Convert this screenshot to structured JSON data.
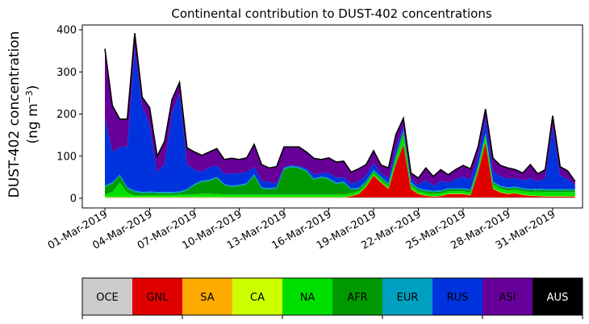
{
  "chart_data": {
    "type": "area",
    "title": "Continental contribution to DUST-402 concentrations",
    "ylabel_line1": "DUST-402 concentration",
    "ylabel_line2": "(ng m",
    "ylabel_unit_exp": "−3",
    "ylabel_close": ")",
    "xlabel": "",
    "ylim": [
      0,
      410
    ],
    "yticks": [
      0,
      100,
      200,
      300,
      400
    ],
    "xtick_days": [
      1,
      4,
      7,
      10,
      13,
      16,
      19,
      22,
      25,
      28,
      31
    ],
    "xtick_labels": [
      "01-Mar-2019",
      "04-Mar-2019",
      "07-Mar-2019",
      "10-Mar-2019",
      "13-Mar-2019",
      "16-Mar-2019",
      "19-Mar-2019",
      "22-Mar-2019",
      "25-Mar-2019",
      "28-Mar-2019",
      "31-Mar-2019"
    ],
    "x_start_day": 1,
    "x_end_day": 32.5,
    "x_step_days": 0.5,
    "total": [
      355,
      220,
      188,
      188,
      392,
      240,
      215,
      100,
      135,
      235,
      275,
      120,
      110,
      102,
      110,
      118,
      92,
      95,
      92,
      96,
      128,
      80,
      72,
      75,
      122,
      122,
      122,
      110,
      95,
      92,
      96,
      86,
      88,
      62,
      70,
      80,
      113,
      79,
      72,
      152,
      190,
      60,
      48,
      72,
      52,
      68,
      56,
      68,
      78,
      70,
      122,
      212,
      95,
      78,
      72,
      68,
      60,
      80,
      58,
      68,
      196,
      75,
      65,
      40
    ],
    "series": [
      {
        "name": "OCE",
        "color": "#cbcbcb",
        "values": [
          2,
          2,
          2,
          2,
          2,
          2,
          2,
          2,
          2,
          2,
          2,
          2,
          2,
          2,
          2,
          2,
          2,
          2,
          2,
          2,
          2,
          2,
          2,
          2,
          2,
          2,
          2,
          2,
          2,
          2,
          2,
          2,
          2,
          2,
          2,
          2,
          2,
          2,
          2,
          2,
          2,
          2,
          2,
          2,
          2,
          2,
          2,
          2,
          2,
          2,
          2,
          2,
          2,
          2,
          2,
          2,
          2,
          2,
          2,
          2,
          2,
          2,
          2,
          2
        ]
      },
      {
        "name": "GNL",
        "color": "#e00000",
        "values": [
          0,
          0,
          0,
          0,
          0,
          0,
          0,
          0,
          0,
          0,
          0,
          0,
          0,
          0,
          0,
          0,
          0,
          0,
          0,
          0,
          0,
          0,
          0,
          0,
          0,
          0,
          0,
          0,
          0,
          0,
          0,
          0,
          0,
          3,
          8,
          25,
          52,
          35,
          20,
          80,
          125,
          20,
          8,
          4,
          2,
          3,
          8,
          8,
          8,
          5,
          60,
          130,
          20,
          12,
          8,
          10,
          6,
          4,
          3,
          2,
          2,
          2,
          2,
          2
        ]
      },
      {
        "name": "SA",
        "color": "#ffaa00",
        "values": [
          0,
          0,
          0,
          0,
          0,
          0,
          0,
          0,
          0,
          0,
          0,
          0,
          0,
          0,
          0,
          0,
          0,
          0,
          0,
          0,
          0,
          0,
          0,
          0,
          0,
          0,
          0,
          0,
          0,
          0,
          0,
          0,
          0,
          0,
          0,
          0,
          0,
          0,
          0,
          0,
          0,
          0,
          0,
          0,
          0,
          0,
          0,
          0,
          0,
          0,
          0,
          0,
          0,
          0,
          0,
          0,
          0,
          0,
          0,
          0,
          0,
          0,
          0,
          0
        ]
      },
      {
        "name": "CA",
        "color": "#ccff00",
        "values": [
          1,
          1,
          1,
          1,
          1,
          1,
          1,
          1,
          1,
          1,
          1,
          1,
          1,
          1,
          1,
          1,
          1,
          1,
          1,
          1,
          1,
          1,
          1,
          1,
          1,
          1,
          1,
          1,
          1,
          1,
          1,
          1,
          1,
          1,
          1,
          1,
          1,
          1,
          1,
          1,
          1,
          1,
          1,
          1,
          1,
          1,
          1,
          1,
          1,
          1,
          1,
          1,
          1,
          1,
          1,
          1,
          1,
          1,
          1,
          1,
          1,
          1,
          1,
          1
        ]
      },
      {
        "name": "NA",
        "color": "#00e000",
        "values": [
          6,
          12,
          35,
          10,
          4,
          4,
          5,
          5,
          5,
          5,
          6,
          6,
          6,
          8,
          8,
          7,
          6,
          6,
          6,
          6,
          6,
          6,
          6,
          6,
          6,
          6,
          6,
          6,
          6,
          6,
          6,
          6,
          6,
          6,
          6,
          6,
          6,
          6,
          6,
          12,
          22,
          8,
          6,
          6,
          6,
          6,
          6,
          6,
          6,
          6,
          8,
          15,
          10,
          8,
          8,
          8,
          8,
          8,
          10,
          10,
          10,
          10,
          10,
          10
        ]
      },
      {
        "name": "AFR",
        "color": "#009900",
        "values": [
          18,
          20,
          15,
          10,
          8,
          5,
          5,
          4,
          4,
          4,
          4,
          10,
          22,
          28,
          30,
          38,
          22,
          18,
          20,
          24,
          45,
          14,
          12,
          14,
          60,
          65,
          62,
          55,
          35,
          40,
          36,
          25,
          28,
          8,
          5,
          4,
          4,
          4,
          4,
          6,
          8,
          4,
          4,
          4,
          4,
          4,
          4,
          4,
          4,
          4,
          4,
          4,
          4,
          4,
          4,
          4,
          4,
          4,
          4,
          4,
          4,
          4,
          4,
          4
        ]
      },
      {
        "name": "EUR",
        "color": "#00a0c0",
        "values": [
          3,
          3,
          3,
          3,
          3,
          3,
          3,
          3,
          3,
          3,
          3,
          3,
          3,
          3,
          3,
          3,
          3,
          3,
          3,
          3,
          3,
          3,
          3,
          3,
          3,
          3,
          3,
          3,
          3,
          3,
          3,
          3,
          3,
          3,
          3,
          3,
          3,
          3,
          3,
          3,
          3,
          3,
          3,
          3,
          3,
          3,
          3,
          3,
          3,
          3,
          3,
          3,
          3,
          3,
          3,
          3,
          3,
          3,
          3,
          3,
          3,
          3,
          3,
          3
        ]
      }
    ],
    "legend": [
      {
        "name": "OCE",
        "color": "#cbcbcb"
      },
      {
        "name": "GNL",
        "color": "#e00000"
      },
      {
        "name": "SA",
        "color": "#ffaa00"
      },
      {
        "name": "CA",
        "color": "#ccff00"
      },
      {
        "name": "NA",
        "color": "#00e000"
      },
      {
        "name": "AFR",
        "color": "#009900"
      },
      {
        "name": "EUR",
        "color": "#00a0c0"
      },
      {
        "name": "RUS",
        "color": "#0033dd"
      },
      {
        "name": "ASI",
        "color": "#660099"
      },
      {
        "name": "AUS",
        "color": "#000000"
      }
    ],
    "rus_fraction": [
      0.5,
      0.4,
      0.5,
      0.6,
      0.9,
      0.9,
      0.8,
      0.55,
      0.55,
      0.85,
      0.9,
      0.6,
      0.45,
      0.35,
      0.45,
      0.4,
      0.4,
      0.45,
      0.45,
      0.45,
      0.25,
      0.3,
      0.3,
      0.2,
      0.05,
      0.05,
      0.05,
      0.1,
      0.2,
      0.2,
      0.25,
      0.25,
      0.2,
      0.3,
      0.35,
      0.35,
      0.35,
      0.3,
      0.3,
      0.35,
      0.3,
      0.35,
      0.35,
      0.45,
      0.35,
      0.45,
      0.4,
      0.5,
      0.5,
      0.5,
      0.5,
      0.6,
      0.45,
      0.45,
      0.45,
      0.5,
      0.5,
      0.45,
      0.5,
      0.55,
      0.85,
      0.6,
      0.55,
      0.55
    ]
  }
}
